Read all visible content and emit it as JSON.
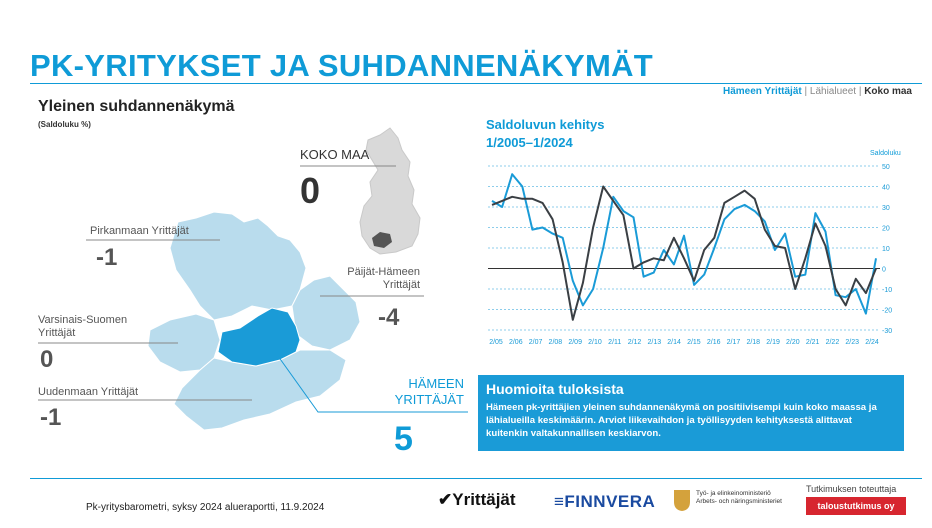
{
  "header": {
    "title": "PK-YRITYKSET JA SUHDANNENÄKYMÄT",
    "nav": {
      "active": "Hämeen Yrittäjät",
      "sep": " | ",
      "middle": "Lähialueet",
      "last": "Koko maa"
    }
  },
  "map_section": {
    "title": "Yleinen suhdannenäkymä",
    "unit": "(Saldoluku %)",
    "koko_maa": {
      "label": "KOKO MAA",
      "value": "0"
    },
    "regions": [
      {
        "label": "Pirkanmaan Yrittäjät",
        "value": "-1"
      },
      {
        "label": "Päijät-Hämeen Yrittäjät",
        "value": "-4"
      },
      {
        "label": "Varsinais-Suomen Yrittäjät",
        "value": "0"
      },
      {
        "label": "Uudenmaan Yrittäjät",
        "value": "-1"
      }
    ],
    "hameen": {
      "label": "HÄMEEN YRITTÄJÄT",
      "value": "5"
    },
    "colors": {
      "highlight": "#1a9bd7",
      "neighbors": "#b9dced",
      "finland": "#d9d9d9"
    }
  },
  "chart_section": {
    "title_line1": "Saldoluvun kehitys",
    "title_line2": "1/2005–1/2024",
    "ylabel": "Saldoluku"
  },
  "chart_data": {
    "type": "line",
    "ylabel": "Saldoluku",
    "ylim": [
      -30,
      50
    ],
    "yticks": [
      50,
      40,
      30,
      20,
      10,
      0,
      -10,
      -20,
      -30
    ],
    "x_labels": [
      "2/05",
      "2/06",
      "2/07",
      "2/08",
      "2/09",
      "2/10",
      "2/11",
      "2/12",
      "2/13",
      "2/14",
      "2/15",
      "2/16",
      "2/17",
      "2/18",
      "2/19",
      "2/20",
      "2/21",
      "2/22",
      "2/23",
      "2/24"
    ],
    "series": [
      {
        "color": "#1a9bd7",
        "values": [
          33,
          30,
          46,
          40,
          19,
          20,
          17,
          15,
          -6,
          -18,
          -10,
          10,
          35,
          28,
          25,
          -4,
          -2,
          9,
          2,
          16,
          -8,
          -3,
          10,
          24,
          29,
          31,
          28,
          23,
          9,
          17,
          -4,
          -3,
          27,
          18,
          -13,
          -14,
          -10,
          -22,
          5
        ]
      },
      {
        "color": "#3a3f44",
        "values": [
          31,
          33,
          35,
          34,
          34,
          32,
          24,
          3,
          -25,
          -7,
          20,
          40,
          33,
          26,
          0,
          3,
          5,
          4,
          15,
          5,
          -6,
          9,
          15,
          32,
          35,
          38,
          34,
          19,
          11,
          10,
          -10,
          5,
          22,
          11,
          -10,
          -18,
          -5,
          -12,
          0
        ]
      }
    ],
    "grid": true,
    "legend": "none"
  },
  "highlights": {
    "title": "Huomioita tuloksista",
    "text": "Hämeen pk-yrittäjien yleinen suhdannenäkymä on positiivisempi kuin koko maassa ja lähialueilla keskimäärin. Arviot liikevaihdon ja työllisyyden kehityksestä alittavat kuitenkin valtakunnallisen keskiarvon."
  },
  "footer": {
    "source": "Pk-yritysbarometri, syksy 2024 alueraportti, 11.9.2024",
    "logo_yrittajat": "Yrittäjät",
    "logo_finnvera": "FINNVERA",
    "logo_tem_line1": "Työ- ja elinkeinoministeriö",
    "logo_tem_line2": "Arbets- och näringsministeriet",
    "research_label": "Tutkimuksen toteuttaja",
    "research_logo": "taloustutkimus oy"
  }
}
